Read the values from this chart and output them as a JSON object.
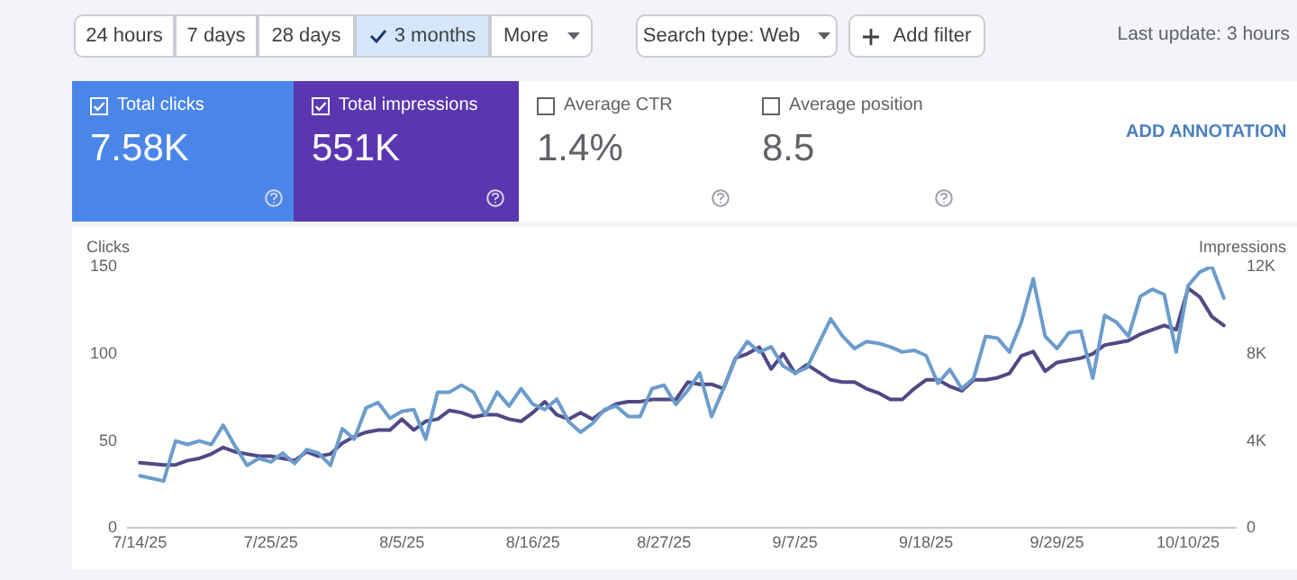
{
  "chart_data": {
    "type": "line",
    "ylabel": "Clicks",
    "y2label": "Impressions",
    "annotations": [
      "24 hours",
      "7 days",
      "28 days",
      "3 months",
      "More",
      "Search type: Web",
      "Add filter",
      "Last update: 3 hours",
      "Total clicks",
      "7.58K",
      "Total impressions",
      "551K",
      "Average CTR",
      "1.4%",
      "Average position",
      "8.5",
      "ADD ANNOTATION"
    ],
    "x": [
      "--07-14",
      "--07-16",
      "--07-17",
      "--07-18",
      "--07-19",
      "--07-20",
      "--07-21",
      "--07-22",
      "--07-23",
      "--07-24",
      "--07-25",
      "--07-26",
      "--07-27",
      "--07-28",
      "--07-29",
      "--07-30",
      "--07-31",
      "--08-01",
      "--08-02",
      "--08-03",
      "--08-04",
      "--08-05",
      "--08-06",
      "--08-07",
      "--08-08",
      "--08-09",
      "--08-10",
      "--08-11",
      "--08-12",
      "--08-13",
      "--08-14",
      "--08-15",
      "--08-16",
      "--08-17",
      "--08-18",
      "--08-19",
      "--08-20",
      "--08-21",
      "--08-22",
      "--08-23",
      "--08-24",
      "--08-25",
      "--08-26",
      "--08-27",
      "--08-28",
      "--08-29",
      "--08-30",
      "--08-31",
      "--09-01",
      "--09-02",
      "--09-03",
      "--09-04",
      "--09-05",
      "--09-06",
      "--09-07",
      "--09-08",
      "--09-10",
      "--09-11",
      "--09-12",
      "--09-13",
      "--09-14",
      "--09-15",
      "--09-16",
      "--09-17",
      "--09-18",
      "--09-19",
      "--09-20",
      "--09-21",
      "--09-22",
      "--09-23",
      "--09-24",
      "--09-25",
      "--09-26",
      "--09-27",
      "--09-28",
      "--09-29",
      "--09-30",
      "--10-01",
      "--10-02",
      "--10-03",
      "--10-04",
      "--10-05",
      "--10-06",
      "--10-07",
      "--10-08",
      "--10-09",
      "--10-10",
      "--10-11",
      "--10-12",
      "--10-13"
    ],
    "series": [
      {
        "color": "#6b9ccc",
        "values": [
          30,
          27,
          50,
          48,
          50,
          48,
          59,
          47,
          36,
          40,
          38,
          43,
          37,
          45,
          43,
          36,
          57,
          51,
          69,
          72,
          63,
          67,
          68,
          51,
          78,
          78,
          82,
          78,
          65,
          78,
          70,
          80,
          71,
          68,
          74,
          61,
          55,
          60,
          68,
          70,
          64,
          64,
          80,
          82,
          71,
          79,
          89,
          64,
          80,
          97,
          107,
          101,
          104,
          93,
          89,
          92,
          120,
          110,
          103,
          107,
          106,
          104,
          101,
          102,
          99,
          83,
          91,
          80,
          86,
          110,
          109,
          101,
          118,
          143,
          110,
          103,
          112,
          113,
          86,
          122,
          118,
          110,
          133,
          137,
          134,
          101,
          139,
          147,
          150,
          132
        ]
      },
      {
        "color": "#4f4a86",
        "axis": "y2",
        "values": [
          3000,
          2900,
          2900,
          3100,
          3200,
          3400,
          3700,
          3500,
          3400,
          3300,
          3300,
          3200,
          3100,
          3500,
          3300,
          3400,
          3900,
          4200,
          4400,
          4500,
          4500,
          5000,
          4500,
          4900,
          5000,
          5400,
          5300,
          5100,
          5200,
          5200,
          5000,
          4900,
          5300,
          5800,
          5200,
          5000,
          5300,
          5000,
          5400,
          5700,
          5800,
          5800,
          5900,
          5900,
          5900,
          6700,
          6600,
          6600,
          6400,
          7800,
          8000,
          8300,
          7300,
          8000,
          7100,
          7500,
          6800,
          6700,
          6700,
          6400,
          6200,
          5900,
          5900,
          6400,
          6800,
          6800,
          6500,
          6300,
          6800,
          6800,
          6900,
          7100,
          7900,
          8100,
          7200,
          7600,
          7700,
          7800,
          8000,
          8400,
          8500,
          8600,
          8900,
          9100,
          9300,
          9100,
          11000,
          10600,
          9700,
          9300
        ]
      }
    ],
    "xlim": [
      "--07-13",
      "--10-14"
    ],
    "xticks": [
      {
        "value": "--07-14",
        "label": "7/14/25"
      },
      {
        "value": "--07-25",
        "label": "7/25/25"
      },
      {
        "value": "--08-05",
        "label": "8/5/25"
      },
      {
        "value": "--08-16",
        "label": "8/16/25"
      },
      {
        "value": "--08-27",
        "label": "8/27/25"
      },
      {
        "value": "--09-07",
        "label": "9/7/25"
      },
      {
        "value": "--09-18",
        "label": "9/18/25"
      },
      {
        "value": "--09-29",
        "label": "9/29/25"
      },
      {
        "value": "--10-10",
        "label": "10/10/25"
      }
    ],
    "ylim": [
      0,
      150
    ],
    "yticks": [
      0,
      50,
      100,
      150
    ],
    "y2lim": [
      0,
      12000
    ],
    "y2ticks": [
      {
        "value": 0,
        "label": "0"
      },
      {
        "value": 4000,
        "label": "4K"
      },
      {
        "value": 8000,
        "label": "8K"
      },
      {
        "value": 12000,
        "label": "12K"
      }
    ],
    "grid": false,
    "legend": false,
    "marker": "none",
    "line_style": "solid"
  }
}
